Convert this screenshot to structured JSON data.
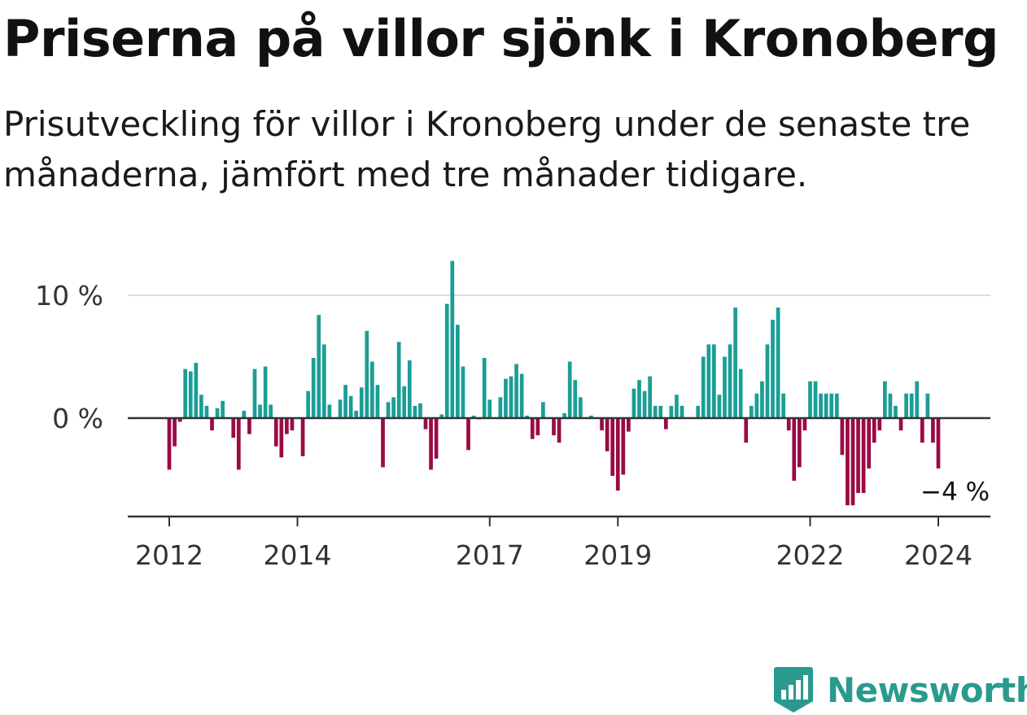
{
  "title": "Priserna på villor sjönk i Kronoberg",
  "subtitle": "Prisutveckling för villor i Kronoberg under de senaste tre månaderna, jämfört med tre månader tidigare.",
  "brand": {
    "name": "Newsworthy",
    "color": "#2a9a8e"
  },
  "chart_data": {
    "type": "bar",
    "title": "Priserna på villor sjönk i Kronoberg",
    "subtitle": "Prisutveckling för villor i Kronoberg under de senaste tre månaderna, jämfört med tre månader tidigare.",
    "xlabel": "",
    "ylabel": "",
    "ylim": [
      -8,
      13
    ],
    "x_range": [
      "2011-07",
      "2024-12"
    ],
    "y_ticks": [
      {
        "value": 10,
        "label": "10 %"
      },
      {
        "value": 0,
        "label": "0 %"
      }
    ],
    "x_ticks": [
      {
        "date": "2012-01",
        "label": "2012"
      },
      {
        "date": "2014-01",
        "label": "2014"
      },
      {
        "date": "2017-01",
        "label": "2017"
      },
      {
        "date": "2019-01",
        "label": "2019"
      },
      {
        "date": "2022-01",
        "label": "2022"
      },
      {
        "date": "2024-01",
        "label": "2024"
      }
    ],
    "grid": true,
    "colors": {
      "positive": "#1a9e96",
      "negative": "#9b0a45",
      "gridline": "#dddddd",
      "zero_line": "#333333",
      "axis_line": "#333333"
    },
    "annotation": {
      "text": "−4 %",
      "date": "2024-03",
      "value": -4.1
    },
    "series": [
      {
        "name": "",
        "start": "2012-01",
        "frequency": "monthly",
        "values": [
          -4.2,
          -2.3,
          -0.3,
          4.0,
          3.8,
          4.5,
          1.9,
          1.0,
          -1.0,
          0.8,
          1.4,
          0.0,
          -1.6,
          -4.2,
          0.6,
          -1.3,
          4.0,
          1.1,
          4.2,
          1.1,
          -2.3,
          -3.2,
          -1.3,
          -1.0,
          0.0,
          -3.1,
          2.2,
          4.9,
          8.4,
          6.0,
          1.1,
          0.0,
          1.5,
          2.7,
          1.8,
          0.6,
          2.5,
          7.1,
          4.6,
          2.7,
          -4.0,
          1.3,
          1.7,
          6.2,
          2.6,
          4.7,
          1.0,
          1.2,
          -0.9,
          -4.2,
          -3.3,
          0.3,
          9.3,
          12.8,
          7.6,
          4.2,
          -2.6,
          0.2,
          -0.1,
          4.9,
          1.5,
          0.0,
          1.7,
          3.2,
          3.4,
          4.4,
          3.6,
          0.2,
          -1.7,
          -1.4,
          1.3,
          0.0,
          -1.4,
          -2.0,
          0.4,
          4.6,
          3.1,
          1.7,
          0.0,
          0.2,
          0.0,
          -1.0,
          -2.7,
          -4.7,
          -5.9,
          -4.6,
          -1.1,
          2.4,
          3.1,
          2.2,
          3.4,
          1.0,
          1.0,
          -0.9,
          1.0,
          1.9,
          1.0,
          0.0,
          0.0,
          1.0,
          5.0,
          6.0,
          6.0,
          1.9,
          5.0,
          6.0,
          9.0,
          4.0,
          -2.0,
          1.0,
          2.0,
          3.0,
          6.0,
          8.0,
          9.0,
          2.0,
          -1.0,
          -5.1,
          -4.0,
          -1.0,
          3.0,
          3.0,
          2.0,
          2.0,
          2.0,
          2.0,
          -3.0,
          -7.1,
          -7.1,
          -6.1,
          -6.1,
          -4.1,
          -2.0,
          -1.0,
          3.0,
          2.0,
          1.0,
          -1.0,
          2.0,
          2.0,
          3.0,
          -2.0,
          2.0,
          -2.0,
          -4.1
        ]
      }
    ]
  }
}
